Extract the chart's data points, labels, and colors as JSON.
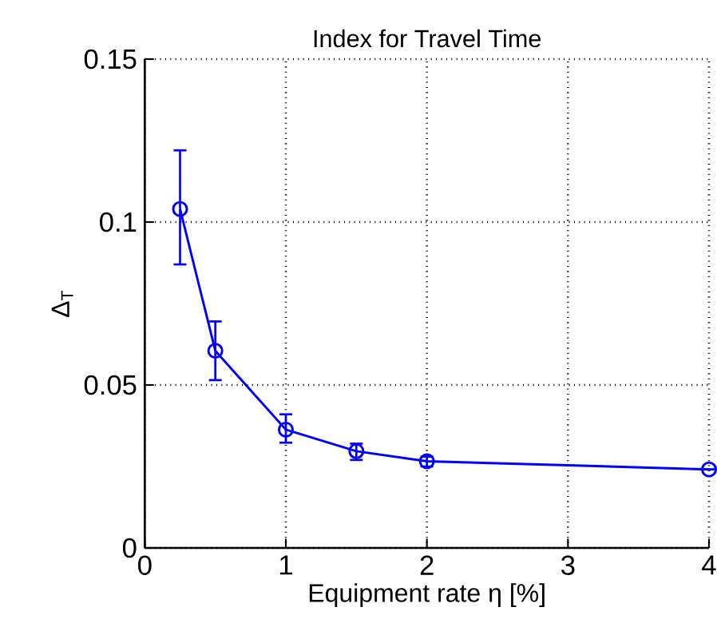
{
  "chart_data": {
    "type": "line",
    "title": "Index for Travel Time",
    "xlabel": "Equipment rate η [%]",
    "ylabel": "Δ$_{T}$",
    "x": [
      0.25,
      0.5,
      1,
      1.5,
      2,
      4
    ],
    "series": [
      {
        "color": "#0000ff",
        "values": [
          0.104,
          0.0605,
          0.0363,
          0.0297,
          0.0266,
          0.0241
        ],
        "errors": [
          [
            0.087,
            0.122
          ],
          [
            0.0515,
            0.0695
          ],
          [
            0.0323,
            0.041
          ],
          [
            0.027,
            0.032
          ],
          [
            0.025,
            0.028
          ],
          null
        ]
      }
    ],
    "xlim": [
      0,
      4
    ],
    "ylim": [
      0,
      0.15
    ],
    "xticks": [
      0,
      1,
      2,
      3,
      4
    ],
    "yticks": [
      0,
      0.05,
      0.1,
      0.15
    ],
    "grid": true,
    "marker": "circle",
    "line_style": "solid"
  }
}
